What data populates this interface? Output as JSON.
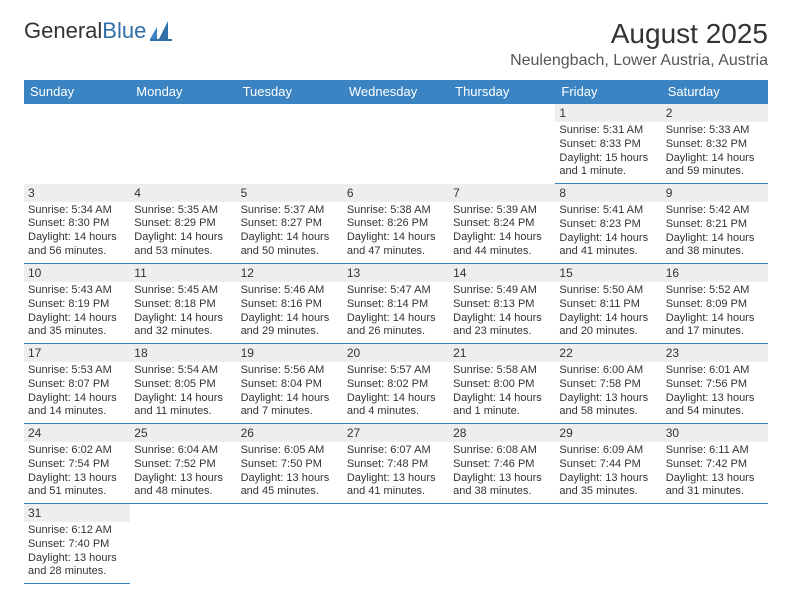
{
  "logo": {
    "text1": "General",
    "text2": "Blue"
  },
  "title": "August 2025",
  "subtitle": "Neulengbach, Lower Austria, Austria",
  "weekdays": [
    "Sunday",
    "Monday",
    "Tuesday",
    "Wednesday",
    "Thursday",
    "Friday",
    "Saturday"
  ],
  "colors": {
    "header_bg": "#3a84c4",
    "daynum_bg": "#eeeeee",
    "border": "#3a84c4",
    "logo_blue": "#2f6fa8"
  },
  "days": {
    "1": {
      "sunrise": "5:31 AM",
      "sunset": "8:33 PM",
      "daylight": "15 hours and 1 minute."
    },
    "2": {
      "sunrise": "5:33 AM",
      "sunset": "8:32 PM",
      "daylight": "14 hours and 59 minutes."
    },
    "3": {
      "sunrise": "5:34 AM",
      "sunset": "8:30 PM",
      "daylight": "14 hours and 56 minutes."
    },
    "4": {
      "sunrise": "5:35 AM",
      "sunset": "8:29 PM",
      "daylight": "14 hours and 53 minutes."
    },
    "5": {
      "sunrise": "5:37 AM",
      "sunset": "8:27 PM",
      "daylight": "14 hours and 50 minutes."
    },
    "6": {
      "sunrise": "5:38 AM",
      "sunset": "8:26 PM",
      "daylight": "14 hours and 47 minutes."
    },
    "7": {
      "sunrise": "5:39 AM",
      "sunset": "8:24 PM",
      "daylight": "14 hours and 44 minutes."
    },
    "8": {
      "sunrise": "5:41 AM",
      "sunset": "8:23 PM",
      "daylight": "14 hours and 41 minutes."
    },
    "9": {
      "sunrise": "5:42 AM",
      "sunset": "8:21 PM",
      "daylight": "14 hours and 38 minutes."
    },
    "10": {
      "sunrise": "5:43 AM",
      "sunset": "8:19 PM",
      "daylight": "14 hours and 35 minutes."
    },
    "11": {
      "sunrise": "5:45 AM",
      "sunset": "8:18 PM",
      "daylight": "14 hours and 32 minutes."
    },
    "12": {
      "sunrise": "5:46 AM",
      "sunset": "8:16 PM",
      "daylight": "14 hours and 29 minutes."
    },
    "13": {
      "sunrise": "5:47 AM",
      "sunset": "8:14 PM",
      "daylight": "14 hours and 26 minutes."
    },
    "14": {
      "sunrise": "5:49 AM",
      "sunset": "8:13 PM",
      "daylight": "14 hours and 23 minutes."
    },
    "15": {
      "sunrise": "5:50 AM",
      "sunset": "8:11 PM",
      "daylight": "14 hours and 20 minutes."
    },
    "16": {
      "sunrise": "5:52 AM",
      "sunset": "8:09 PM",
      "daylight": "14 hours and 17 minutes."
    },
    "17": {
      "sunrise": "5:53 AM",
      "sunset": "8:07 PM",
      "daylight": "14 hours and 14 minutes."
    },
    "18": {
      "sunrise": "5:54 AM",
      "sunset": "8:05 PM",
      "daylight": "14 hours and 11 minutes."
    },
    "19": {
      "sunrise": "5:56 AM",
      "sunset": "8:04 PM",
      "daylight": "14 hours and 7 minutes."
    },
    "20": {
      "sunrise": "5:57 AM",
      "sunset": "8:02 PM",
      "daylight": "14 hours and 4 minutes."
    },
    "21": {
      "sunrise": "5:58 AM",
      "sunset": "8:00 PM",
      "daylight": "14 hours and 1 minute."
    },
    "22": {
      "sunrise": "6:00 AM",
      "sunset": "7:58 PM",
      "daylight": "13 hours and 58 minutes."
    },
    "23": {
      "sunrise": "6:01 AM",
      "sunset": "7:56 PM",
      "daylight": "13 hours and 54 minutes."
    },
    "24": {
      "sunrise": "6:02 AM",
      "sunset": "7:54 PM",
      "daylight": "13 hours and 51 minutes."
    },
    "25": {
      "sunrise": "6:04 AM",
      "sunset": "7:52 PM",
      "daylight": "13 hours and 48 minutes."
    },
    "26": {
      "sunrise": "6:05 AM",
      "sunset": "7:50 PM",
      "daylight": "13 hours and 45 minutes."
    },
    "27": {
      "sunrise": "6:07 AM",
      "sunset": "7:48 PM",
      "daylight": "13 hours and 41 minutes."
    },
    "28": {
      "sunrise": "6:08 AM",
      "sunset": "7:46 PM",
      "daylight": "13 hours and 38 minutes."
    },
    "29": {
      "sunrise": "6:09 AM",
      "sunset": "7:44 PM",
      "daylight": "13 hours and 35 minutes."
    },
    "30": {
      "sunrise": "6:11 AM",
      "sunset": "7:42 PM",
      "daylight": "13 hours and 31 minutes."
    },
    "31": {
      "sunrise": "6:12 AM",
      "sunset": "7:40 PM",
      "daylight": "13 hours and 28 minutes."
    }
  },
  "labels": {
    "sunrise": "Sunrise: ",
    "sunset": "Sunset: ",
    "daylight": "Daylight: "
  },
  "grid": [
    [
      null,
      null,
      null,
      null,
      null,
      "1",
      "2"
    ],
    [
      "3",
      "4",
      "5",
      "6",
      "7",
      "8",
      "9"
    ],
    [
      "10",
      "11",
      "12",
      "13",
      "14",
      "15",
      "16"
    ],
    [
      "17",
      "18",
      "19",
      "20",
      "21",
      "22",
      "23"
    ],
    [
      "24",
      "25",
      "26",
      "27",
      "28",
      "29",
      "30"
    ],
    [
      "31",
      null,
      null,
      null,
      null,
      null,
      null
    ]
  ]
}
